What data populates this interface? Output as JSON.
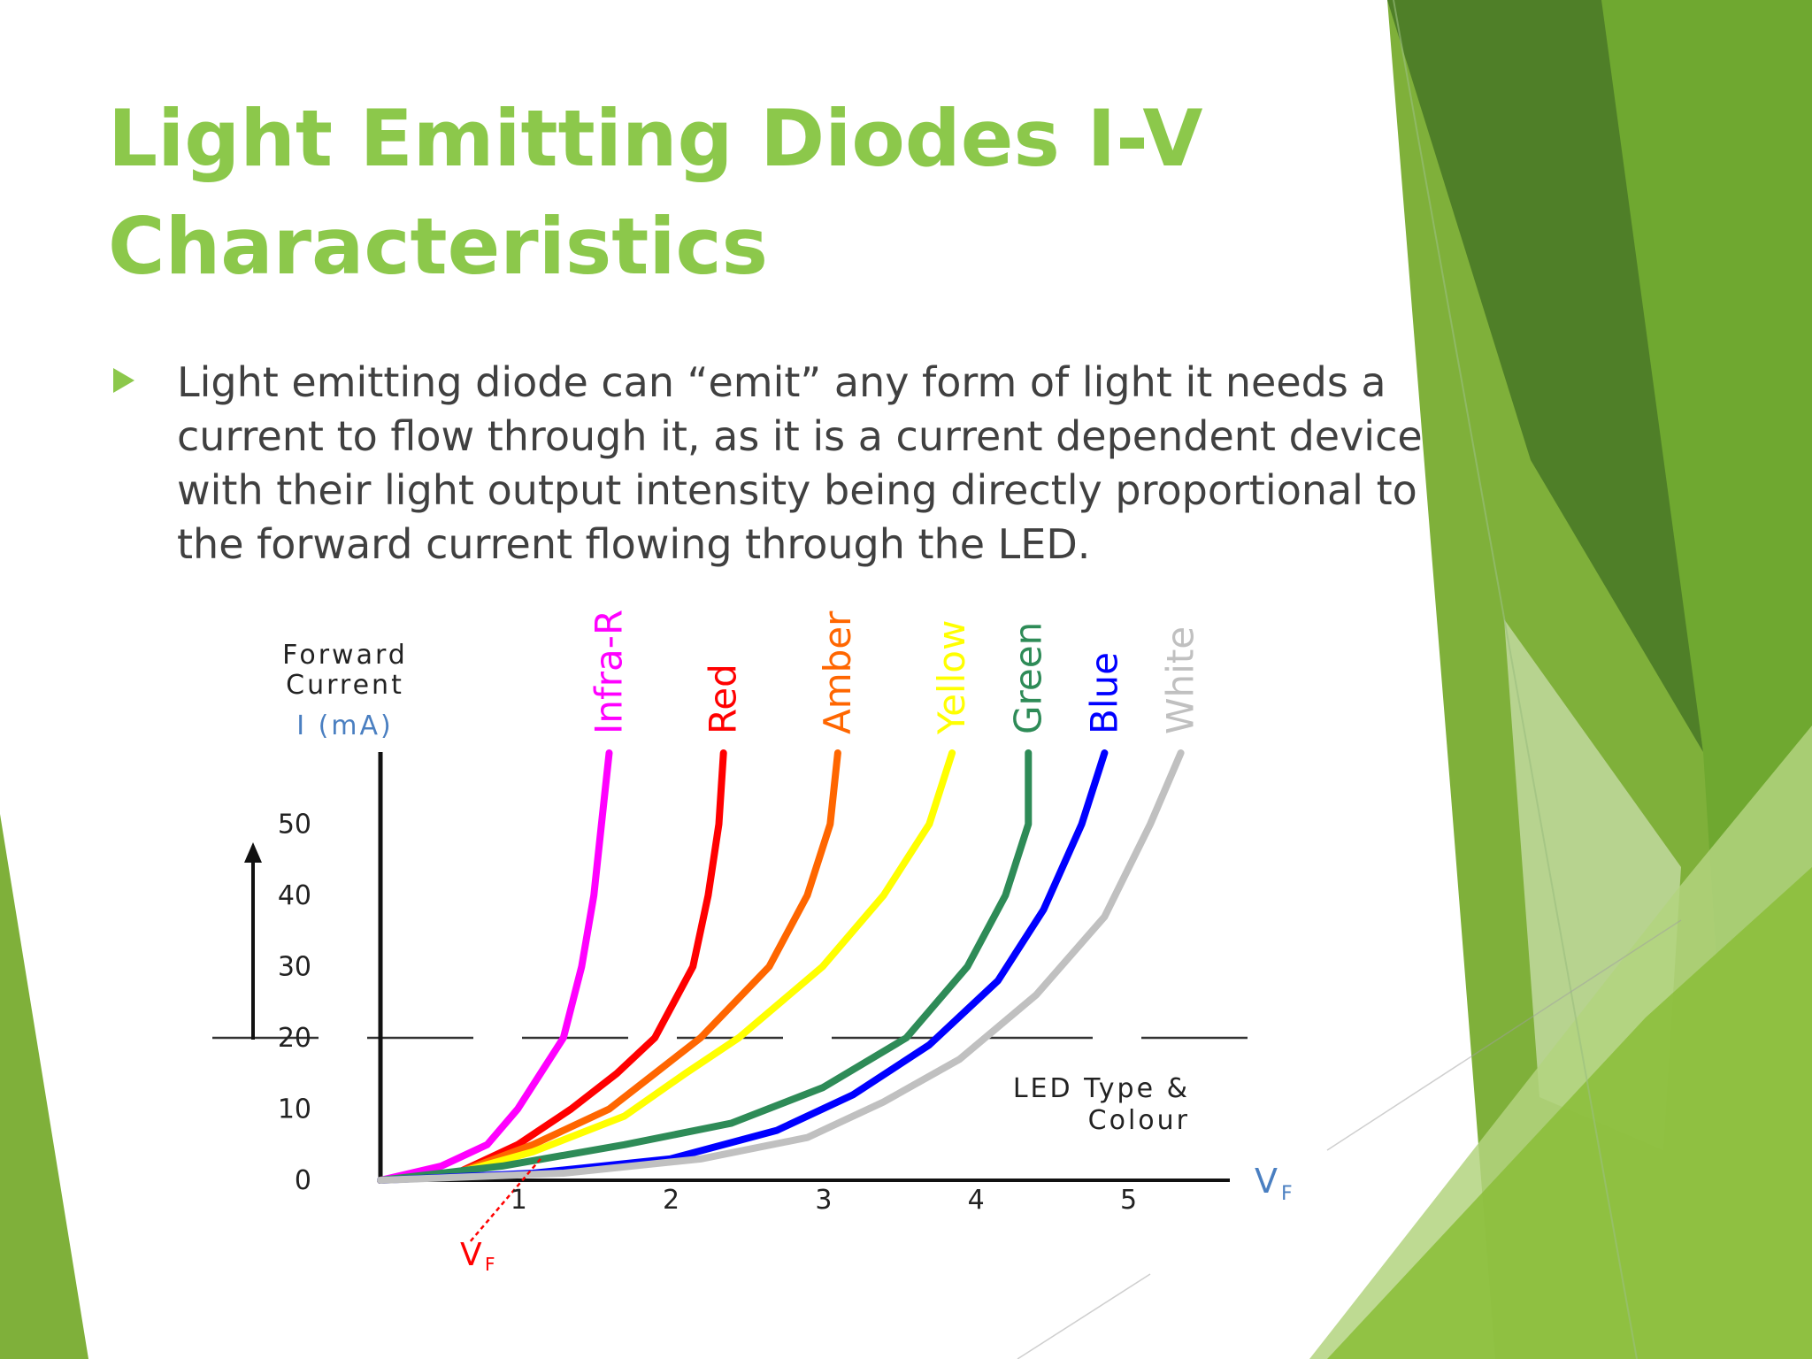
{
  "slide": {
    "title_lines": [
      "Light Emitting Diodes I-V",
      "Characteristics"
    ],
    "bullet_lines": [
      "Light emitting diode can “emit” any form of light it needs a",
      "current to flow through it, as it is a current dependent device",
      "with their light output intensity being directly proportional to",
      "the forward current flowing through the LED."
    ],
    "colors": {
      "title": "#8cc84b",
      "text": "#404040",
      "accent_dark": "#4f7f28",
      "accent_light": "#8cc84b"
    }
  },
  "chart_data": {
    "type": "line",
    "ylabel_lines": [
      "Forward",
      "Current",
      "I (mA)"
    ],
    "x_axis_label": "V",
    "x_axis_label_sub": "F",
    "threshold_label": "V",
    "threshold_label_sub": "F",
    "annotation_lines": [
      "LED Type &",
      "Colour"
    ],
    "x_ticks": [
      "1",
      "2",
      "3",
      "4",
      "5"
    ],
    "y_ticks": [
      "0",
      "10",
      "20",
      "30",
      "40",
      "50"
    ],
    "xlim": [
      0,
      5.5
    ],
    "ylim": [
      0,
      60
    ],
    "reference_line_y": 20,
    "series": [
      {
        "name": "Infra-Red",
        "color": "#ff00ff",
        "x": [
          0,
          0.4,
          0.7,
          0.9,
          1.05,
          1.2,
          1.32,
          1.4,
          1.45,
          1.5
        ],
        "y": [
          0,
          2,
          5,
          10,
          15,
          20,
          30,
          40,
          50,
          60
        ]
      },
      {
        "name": "Red",
        "color": "#ff0000",
        "x": [
          0,
          0.5,
          0.9,
          1.25,
          1.55,
          1.8,
          2.05,
          2.15,
          2.22,
          2.25
        ],
        "y": [
          0,
          1,
          5,
          10,
          15,
          20,
          30,
          40,
          50,
          60
        ]
      },
      {
        "name": "Amber",
        "color": "#ff6600",
        "x": [
          0,
          0.5,
          1.0,
          1.5,
          1.8,
          2.1,
          2.55,
          2.8,
          2.95,
          3.0
        ],
        "y": [
          0,
          1,
          5,
          10,
          15,
          20,
          30,
          40,
          50,
          60
        ]
      },
      {
        "name": "Yellow",
        "color": "#ffff00",
        "x": [
          0,
          0.5,
          1.0,
          1.6,
          2.0,
          2.35,
          2.9,
          3.3,
          3.6,
          3.75
        ],
        "y": [
          0,
          1,
          4,
          9,
          15,
          20,
          30,
          40,
          50,
          60
        ]
      },
      {
        "name": "Green",
        "color": "#2e8b57",
        "x": [
          0,
          0.8,
          1.6,
          2.3,
          2.9,
          3.45,
          3.85,
          4.1,
          4.25,
          4.25
        ],
        "y": [
          0,
          2,
          5,
          8,
          13,
          20,
          30,
          40,
          50,
          60
        ]
      },
      {
        "name": "Blue",
        "color": "#0000ff",
        "x": [
          0,
          1.0,
          1.9,
          2.6,
          3.1,
          3.6,
          4.05,
          4.35,
          4.6,
          4.75
        ],
        "y": [
          0,
          1,
          3,
          7,
          12,
          19,
          28,
          38,
          50,
          60
        ]
      },
      {
        "name": "White",
        "color": "#c0c0c0",
        "x": [
          0,
          1.2,
          2.1,
          2.8,
          3.3,
          3.8,
          4.3,
          4.75,
          5.05,
          5.25
        ],
        "y": [
          0,
          1,
          3,
          6,
          11,
          17,
          26,
          37,
          50,
          60
        ]
      }
    ]
  }
}
